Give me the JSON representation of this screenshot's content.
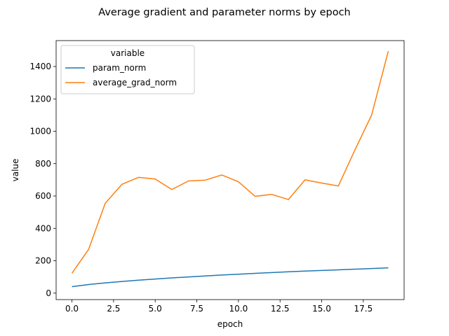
{
  "chart_data": {
    "type": "line",
    "title": "Average gradient and parameter norms by epoch",
    "xlabel": "epoch",
    "ylabel": "value",
    "xlim": [
      -0.95,
      19.95
    ],
    "ylim": [
      -40,
      1560
    ],
    "xticks": [
      0.0,
      2.5,
      5.0,
      7.5,
      10.0,
      12.5,
      15.0,
      17.5
    ],
    "xtick_labels": [
      "0.0",
      "2.5",
      "5.0",
      "7.5",
      "10.0",
      "12.5",
      "15.0",
      "17.5"
    ],
    "yticks": [
      0,
      200,
      400,
      600,
      800,
      1000,
      1200,
      1400
    ],
    "ytick_labels": [
      "0",
      "200",
      "400",
      "600",
      "800",
      "1000",
      "1200",
      "1400"
    ],
    "grid": false,
    "legend": {
      "title": "variable",
      "position": "top-left"
    },
    "x": [
      0,
      1,
      2,
      3,
      4,
      5,
      6,
      7,
      8,
      9,
      10,
      11,
      12,
      13,
      14,
      15,
      16,
      17,
      18,
      19
    ],
    "series": [
      {
        "name": "param_norm",
        "color": "#1f77b4",
        "values": [
          40,
          53,
          63,
          72,
          80,
          87,
          94,
          100,
          106,
          112,
          117,
          122,
          127,
          132,
          136,
          140,
          144,
          148,
          152,
          156
        ]
      },
      {
        "name": "average_grad_norm",
        "color": "#ff7f0e",
        "values": [
          123,
          270,
          555,
          672,
          715,
          705,
          640,
          693,
          698,
          730,
          688,
          598,
          610,
          578,
          700,
          680,
          662,
          885,
          1100,
          1495
        ]
      }
    ]
  }
}
